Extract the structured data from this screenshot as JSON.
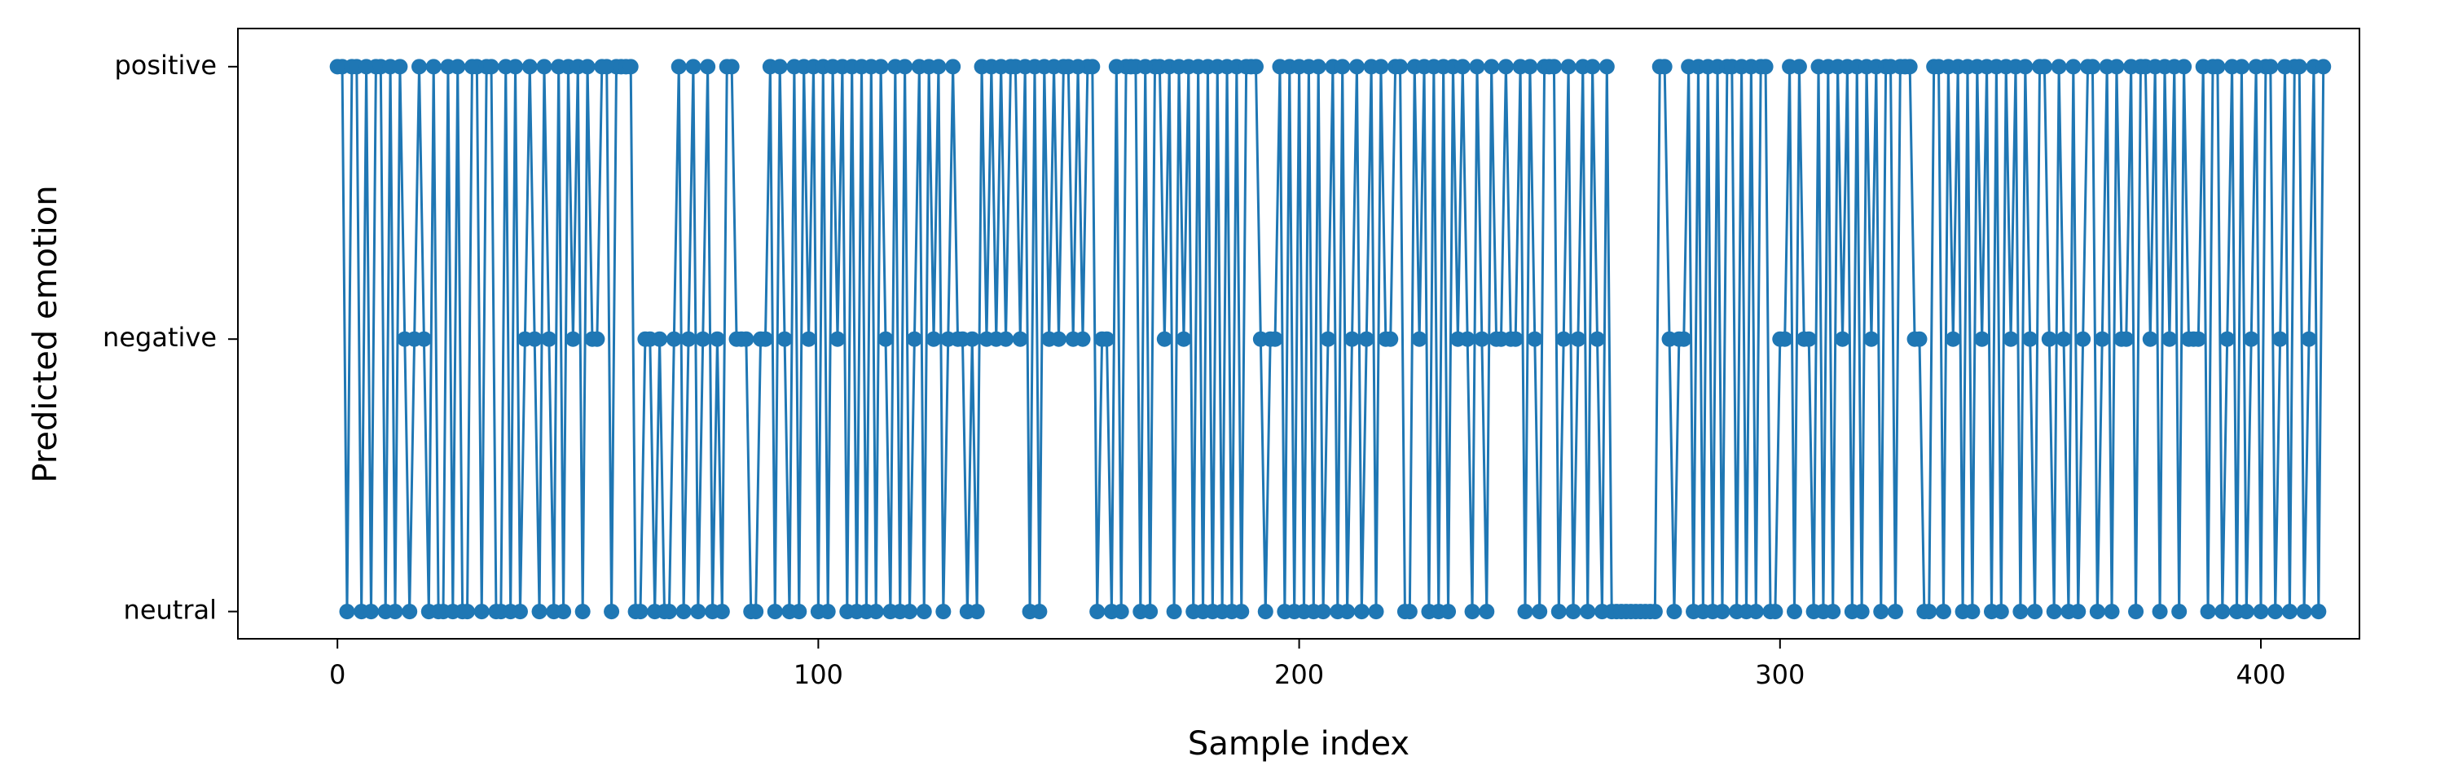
{
  "chart_data": {
    "type": "line",
    "x_label": "Sample index",
    "y_label": "Predicted emotion",
    "xlim": [
      -20.7,
      420.5
    ],
    "xticks": [
      0,
      100,
      200,
      300,
      400
    ],
    "ylim": [
      -0.1,
      2.14
    ],
    "yticks": [
      {
        "value": 0,
        "label": "neutral"
      },
      {
        "value": 1,
        "label": "negative"
      },
      {
        "value": 2,
        "label": "positive"
      }
    ],
    "grid": false,
    "series": [
      {
        "color": "#1f77b4",
        "marker": "o",
        "values": [
          2,
          2,
          0,
          2,
          2,
          0,
          2,
          0,
          2,
          2,
          0,
          2,
          0,
          2,
          1,
          0,
          1,
          2,
          1,
          0,
          2,
          0,
          0,
          2,
          0,
          2,
          0,
          0,
          2,
          2,
          0,
          2,
          2,
          0,
          0,
          2,
          0,
          2,
          0,
          1,
          2,
          1,
          0,
          2,
          1,
          0,
          2,
          0,
          2,
          1,
          2,
          0,
          2,
          1,
          1,
          2,
          2,
          0,
          2,
          2,
          2,
          2,
          0,
          0,
          1,
          1,
          0,
          1,
          0,
          0,
          1,
          2,
          0,
          1,
          2,
          0,
          1,
          2,
          0,
          1,
          0,
          2,
          2,
          1,
          1,
          1,
          0,
          0,
          1,
          1,
          2,
          0,
          2,
          1,
          0,
          2,
          0,
          2,
          1,
          2,
          0,
          2,
          0,
          2,
          1,
          2,
          0,
          2,
          0,
          2,
          0,
          2,
          0,
          2,
          1,
          0,
          2,
          0,
          2,
          0,
          1,
          2,
          0,
          2,
          1,
          2,
          0,
          1,
          2,
          1,
          1,
          0,
          1,
          0,
          2,
          1,
          2,
          1,
          2,
          1,
          2,
          2,
          1,
          2,
          0,
          2,
          0,
          2,
          1,
          2,
          1,
          2,
          2,
          1,
          2,
          1,
          2,
          2,
          0,
          1,
          1,
          0,
          2,
          0,
          2,
          2,
          2,
          0,
          2,
          0,
          2,
          2,
          1,
          2,
          0,
          2,
          1,
          2,
          0,
          2,
          0,
          2,
          0,
          2,
          0,
          2,
          0,
          2,
          0,
          2,
          2,
          2,
          1,
          0,
          1,
          1,
          2,
          0,
          2,
          0,
          2,
          0,
          2,
          0,
          2,
          0,
          1,
          2,
          0,
          2,
          0,
          1,
          2,
          0,
          1,
          2,
          0,
          2,
          1,
          1,
          2,
          2,
          0,
          0,
          2,
          1,
          2,
          0,
          2,
          0,
          2,
          0,
          2,
          1,
          2,
          1,
          0,
          2,
          1,
          0,
          2,
          1,
          1,
          2,
          1,
          1,
          2,
          0,
          2,
          1,
          0,
          2,
          2,
          2,
          0,
          1,
          2,
          0,
          1,
          2,
          0,
          2,
          1,
          0,
          2,
          0,
          0,
          0,
          0,
          0,
          0,
          0,
          0,
          0,
          0,
          2,
          2,
          1,
          0,
          1,
          1,
          2,
          0,
          2,
          0,
          2,
          0,
          2,
          0,
          2,
          2,
          0,
          2,
          0,
          2,
          0,
          2,
          2,
          0,
          0,
          1,
          1,
          2,
          0,
          2,
          1,
          1,
          0,
          2,
          0,
          2,
          0,
          2,
          1,
          2,
          0,
          2,
          0,
          2,
          1,
          2,
          0,
          2,
          2,
          0,
          2,
          2,
          2,
          1,
          1,
          0,
          0,
          2,
          2,
          0,
          2,
          1,
          2,
          0,
          2,
          0,
          2,
          1,
          2,
          0,
          2,
          0,
          2,
          1,
          2,
          0,
          2,
          1,
          0,
          2,
          2,
          1,
          0,
          2,
          1,
          0,
          2,
          0,
          1,
          2,
          2,
          0,
          1,
          2,
          0,
          2,
          1,
          1,
          2,
          0,
          2,
          2,
          1,
          2,
          0,
          2,
          1,
          2,
          0,
          2,
          1,
          1,
          1,
          2,
          0,
          2,
          2,
          0,
          1,
          2,
          0,
          2,
          0,
          1,
          2,
          0,
          2,
          2,
          0,
          1,
          2,
          0,
          2,
          2,
          0,
          1,
          2,
          0,
          2
        ]
      }
    ]
  }
}
